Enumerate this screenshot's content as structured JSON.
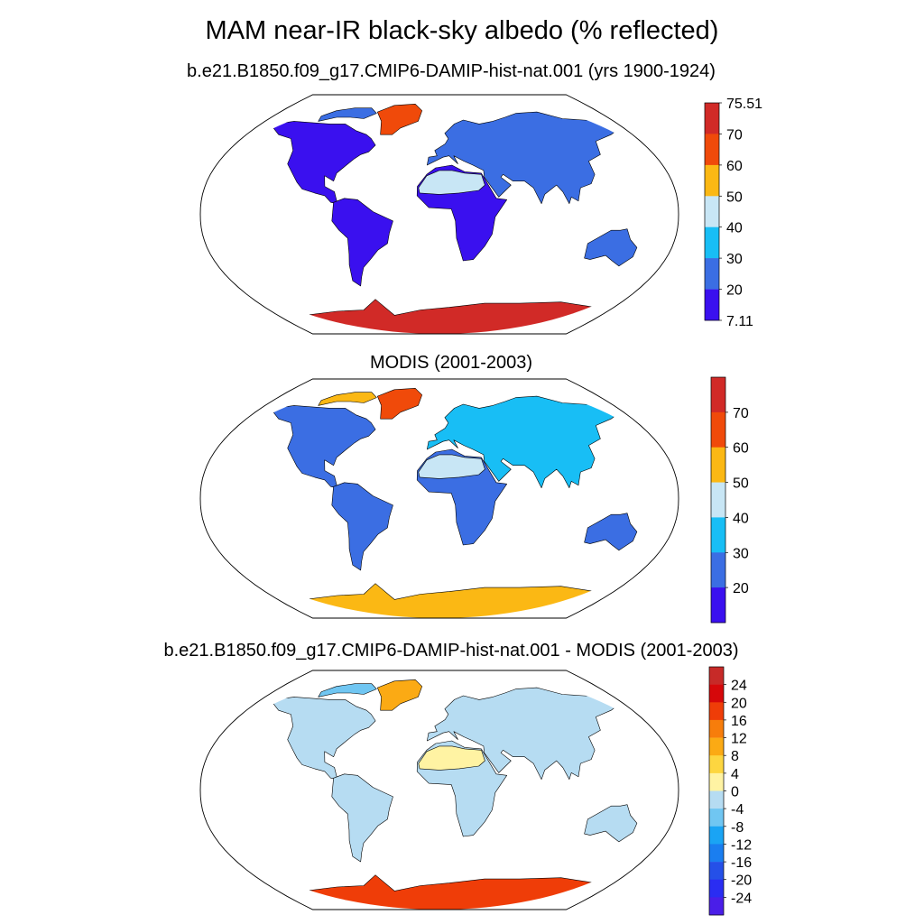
{
  "figure": {
    "title": "MAM near-IR black-sky albedo (% reflected)"
  },
  "colors": {
    "albedo": [
      "#3a10ef",
      "#3b6ee3",
      "#18bef5",
      "#c8e6f5",
      "#fbb814",
      "#f04a0a",
      "#d12a27"
    ],
    "diff": [
      "#4a1ee8",
      "#2a2df2",
      "#2550e8",
      "#1a7ef0",
      "#1aa4f4",
      "#70c6f2",
      "#b6dcf2",
      "#fff3a3",
      "#fdd640",
      "#fbaa14",
      "#f77d0b",
      "#ef3d08",
      "#d6080a",
      "#c72a28"
    ]
  },
  "chart_data": [
    {
      "type": "heatmap",
      "title": "b.e21.B1850.f09_g17.CMIP6-DAMIP-hist-nat.001 (yrs 1900-1924)",
      "projection": "Robinson",
      "colorbar": {
        "levels": [
          20,
          30,
          40,
          50,
          60,
          70
        ],
        "min_label": "7.11",
        "max_label": "75.51",
        "tick_labels": [
          "75.51",
          "70",
          "60",
          "50",
          "40",
          "30",
          "20",
          "7.11"
        ]
      },
      "regions": [
        {
          "name": "North America",
          "bin": 0
        },
        {
          "name": "Northern Canada",
          "bin": 1
        },
        {
          "name": "Greenland",
          "bin": 5
        },
        {
          "name": "South America",
          "bin": 0
        },
        {
          "name": "Africa",
          "bin": 0
        },
        {
          "name": "Sahara",
          "bin": 3
        },
        {
          "name": "Eurasia",
          "bin": 1
        },
        {
          "name": "Australia",
          "bin": 1
        },
        {
          "name": "Antarctica",
          "bin": 6
        }
      ]
    },
    {
      "type": "heatmap",
      "title": "MODIS (2001-2003)",
      "projection": "Robinson",
      "colorbar": {
        "levels": [
          20,
          30,
          40,
          50,
          60,
          70
        ],
        "tick_labels": [
          "70",
          "60",
          "50",
          "40",
          "30",
          "20"
        ]
      },
      "regions": [
        {
          "name": "North America",
          "bin": 1
        },
        {
          "name": "Northern Canada",
          "bin": 4
        },
        {
          "name": "Greenland",
          "bin": 5
        },
        {
          "name": "South America",
          "bin": 1
        },
        {
          "name": "Africa",
          "bin": 1
        },
        {
          "name": "Sahara",
          "bin": 3
        },
        {
          "name": "Eurasia",
          "bin": 2
        },
        {
          "name": "Australia",
          "bin": 1
        },
        {
          "name": "Antarctica",
          "bin": 4
        }
      ]
    },
    {
      "type": "heatmap",
      "title": "b.e21.B1850.f09_g17.CMIP6-DAMIP-hist-nat.001 - MODIS (2001-2003)",
      "projection": "Robinson",
      "colorbar": {
        "levels": [
          -24,
          -20,
          -16,
          -12,
          -8,
          -4,
          0,
          4,
          8,
          12,
          16,
          20,
          24
        ],
        "tick_labels": [
          "24",
          "20",
          "16",
          "12",
          "8",
          "4",
          "0",
          "-4",
          "-8",
          "-12",
          "-16",
          "-20",
          "-24"
        ]
      },
      "regions": [
        {
          "name": "North America",
          "bin": 6
        },
        {
          "name": "Northern Canada",
          "bin": 5
        },
        {
          "name": "Greenland",
          "bin": 9
        },
        {
          "name": "South America",
          "bin": 6
        },
        {
          "name": "Africa",
          "bin": 6
        },
        {
          "name": "Sahara",
          "bin": 7
        },
        {
          "name": "Eurasia",
          "bin": 6
        },
        {
          "name": "Australia",
          "bin": 6
        },
        {
          "name": "Antarctica",
          "bin": 11
        }
      ]
    }
  ]
}
